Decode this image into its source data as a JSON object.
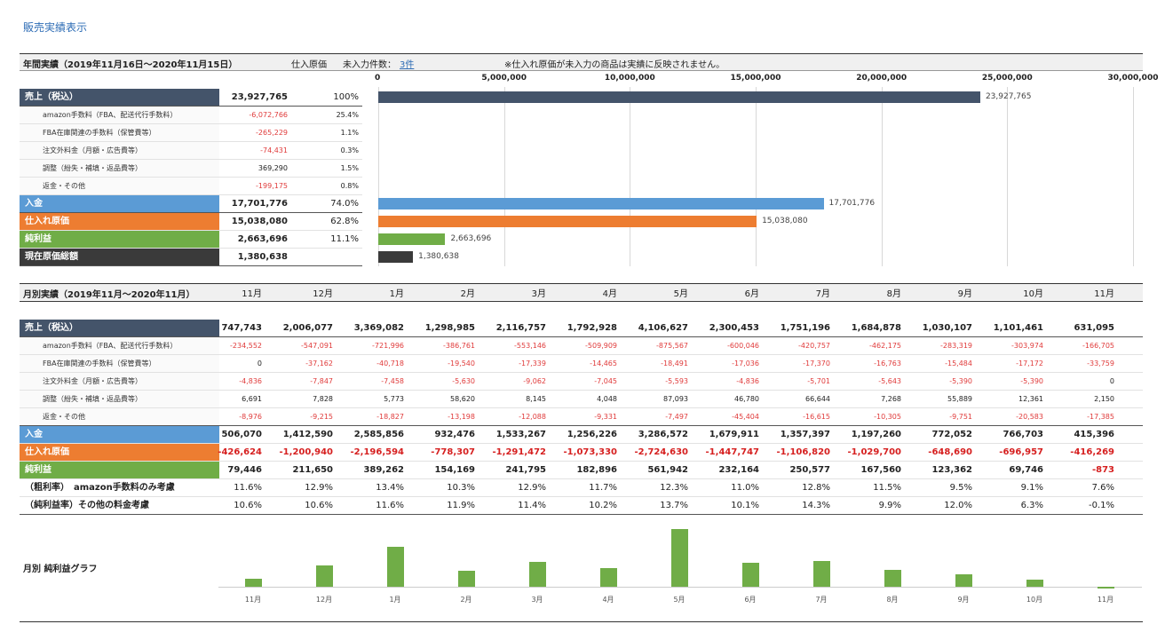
{
  "page_title": "販売実績表示",
  "annual": {
    "header_title": "年間実績（2019年11月16日〜2020年11月15日）",
    "cost_label": "仕入原価",
    "unentered_label": "未入力件数：",
    "unentered_link": "3件",
    "notice": "※仕入れ原価が未入力の商品は実績に反映されません。",
    "axis_ticks": [
      "0",
      "5,000,000",
      "10,000,000",
      "15,000,000",
      "20,000,000",
      "25,000,000",
      "30,000,000"
    ],
    "rows": [
      {
        "label": "売上（税込）",
        "value": "23,927,765",
        "pct": "100%",
        "bar_value": 23927765,
        "bar_label": "23,927,765"
      },
      {
        "label": "amazon手数料（FBA、配送代行手数料）",
        "value": "-6,072,766",
        "pct": "25.4%"
      },
      {
        "label": "FBA在庫関連の手数料（保管費等）",
        "value": "-265,229",
        "pct": "1.1%"
      },
      {
        "label": "注文外料金（月額・広告費等）",
        "value": "-74,431",
        "pct": "0.3%"
      },
      {
        "label": "調整（紛失・補填・返品費等）",
        "value": "369,290",
        "pct": "1.5%"
      },
      {
        "label": "返金・その他",
        "value": "-199,175",
        "pct": "0.8%"
      },
      {
        "label": "入金",
        "value": "17,701,776",
        "pct": "74.0%",
        "bar_value": 17701776,
        "bar_label": "17,701,776"
      },
      {
        "label": "仕入れ原価",
        "value": "15,038,080",
        "pct": "62.8%",
        "bar_value": 15038080,
        "bar_label": "15,038,080"
      },
      {
        "label": "純利益",
        "value": "2,663,696",
        "pct": "11.1%",
        "bar_value": 2663696,
        "bar_label": "2,663,696"
      },
      {
        "label": "現在原価総額",
        "value": "1,380,638",
        "pct": "",
        "bar_value": 1380638,
        "bar_label": "1,380,638"
      }
    ]
  },
  "monthly": {
    "header_title": "月別実績（2019年11月〜2020年11月）",
    "months": [
      "11月",
      "12月",
      "1月",
      "2月",
      "3月",
      "4月",
      "5月",
      "6月",
      "7月",
      "8月",
      "9月",
      "10月",
      "11月"
    ],
    "rows": [
      {
        "label": "売上（税込）",
        "values": [
          "747,743",
          "2,006,077",
          "3,369,082",
          "1,298,985",
          "2,116,757",
          "1,792,928",
          "4,106,627",
          "2,300,453",
          "1,751,196",
          "1,684,878",
          "1,030,107",
          "1,101,461",
          "631,095"
        ]
      },
      {
        "label": "amazon手数料（FBA、配送代行手数料）",
        "values": [
          "-234,552",
          "-547,091",
          "-721,996",
          "-386,761",
          "-553,146",
          "-509,909",
          "-875,567",
          "-600,046",
          "-420,757",
          "-462,175",
          "-283,319",
          "-303,974",
          "-166,705"
        ]
      },
      {
        "label": "FBA在庫関連の手数料（保管費等）",
        "values": [
          "0",
          "-37,162",
          "-40,718",
          "-19,540",
          "-17,339",
          "-14,465",
          "-18,491",
          "-17,036",
          "-17,370",
          "-16,763",
          "-15,484",
          "-17,172",
          "-33,759"
        ]
      },
      {
        "label": "注文外料金（月額・広告費等）",
        "values": [
          "-4,836",
          "-7,847",
          "-7,458",
          "-5,630",
          "-9,062",
          "-7,045",
          "-5,593",
          "-4,836",
          "-5,701",
          "-5,643",
          "-5,390",
          "-5,390",
          "0"
        ]
      },
      {
        "label": "調整（紛失・補填・返品費等）",
        "values": [
          "6,691",
          "7,828",
          "5,773",
          "58,620",
          "8,145",
          "4,048",
          "87,093",
          "46,780",
          "66,644",
          "7,268",
          "55,889",
          "12,361",
          "2,150"
        ]
      },
      {
        "label": "返金・その他",
        "values": [
          "-8,976",
          "-9,215",
          "-18,827",
          "-13,198",
          "-12,088",
          "-9,331",
          "-7,497",
          "-45,404",
          "-16,615",
          "-10,305",
          "-9,751",
          "-20,583",
          "-17,385"
        ]
      },
      {
        "label": "入金",
        "values": [
          "506,070",
          "1,412,590",
          "2,585,856",
          "932,476",
          "1,533,267",
          "1,256,226",
          "3,286,572",
          "1,679,911",
          "1,357,397",
          "1,197,260",
          "772,052",
          "766,703",
          "415,396"
        ]
      },
      {
        "label": "仕入れ原価",
        "values": [
          "-426,624",
          "-1,200,940",
          "-2,196,594",
          "-778,307",
          "-1,291,472",
          "-1,073,330",
          "-2,724,630",
          "-1,447,747",
          "-1,106,820",
          "-1,029,700",
          "-648,690",
          "-696,957",
          "-416,269"
        ]
      },
      {
        "label": "純利益",
        "values": [
          "79,446",
          "211,650",
          "389,262",
          "154,169",
          "241,795",
          "182,896",
          "561,942",
          "232,164",
          "250,577",
          "167,560",
          "123,362",
          "69,746",
          "-873"
        ]
      },
      {
        "label": "（粗利率）　amazon手数料のみ考慮",
        "values": [
          "11.6%",
          "12.9%",
          "13.4%",
          "10.3%",
          "12.9%",
          "11.7%",
          "12.3%",
          "11.0%",
          "12.8%",
          "11.5%",
          "9.5%",
          "9.1%",
          "7.6%"
        ]
      },
      {
        "label": "（純利益率）その他の料金考慮",
        "values": [
          "10.6%",
          "10.6%",
          "11.6%",
          "11.9%",
          "11.4%",
          "10.2%",
          "13.7%",
          "10.1%",
          "14.3%",
          "9.9%",
          "12.0%",
          "6.3%",
          "-0.1%"
        ]
      }
    ]
  },
  "profit_graph": {
    "title": "月別 純利益グラフ"
  },
  "chart_data": [
    {
      "type": "bar",
      "orientation": "horizontal",
      "categories": [
        "売上（税込）",
        "入金",
        "仕入れ原価",
        "純利益",
        "現在原価総額"
      ],
      "values": [
        23927765,
        17701776,
        15038080,
        2663696,
        1380638
      ],
      "xlim": [
        0,
        30000000
      ],
      "grid": true
    },
    {
      "type": "bar",
      "title": "月別 純利益グラフ",
      "categories": [
        "11月",
        "12月",
        "1月",
        "2月",
        "3月",
        "4月",
        "5月",
        "6月",
        "7月",
        "8月",
        "9月",
        "10月",
        "11月"
      ],
      "values": [
        79446,
        211650,
        389262,
        154169,
        241795,
        182896,
        561942,
        232164,
        250577,
        167560,
        123362,
        69746,
        -873
      ],
      "color": "#70ad47",
      "grid": false
    }
  ]
}
